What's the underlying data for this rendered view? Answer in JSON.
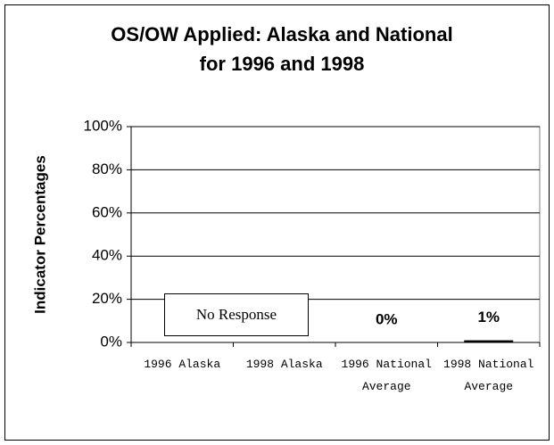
{
  "chart_data": {
    "type": "bar",
    "title": [
      "OS/OW Applied: Alaska and National",
      "for 1996 and 1998"
    ],
    "y_label": "Indicator Percentages",
    "categories": [
      "1996 Alaska",
      "1998 Alaska",
      "1996 National Average",
      "1998 National Average"
    ],
    "values": [
      null,
      null,
      0,
      1
    ],
    "value_labels": [
      null,
      null,
      "0%",
      "1%"
    ],
    "color": "#000000",
    "annotation": "No Response",
    "ylim": [
      0,
      100
    ],
    "yticks": [
      {
        "value": 0,
        "label": "0%"
      },
      {
        "value": 20,
        "label": "20%"
      },
      {
        "value": 40,
        "label": "40%"
      },
      {
        "value": 60,
        "label": "60%"
      },
      {
        "value": 80,
        "label": "80%"
      },
      {
        "value": 100,
        "label": "100%"
      }
    ],
    "grid": true
  }
}
